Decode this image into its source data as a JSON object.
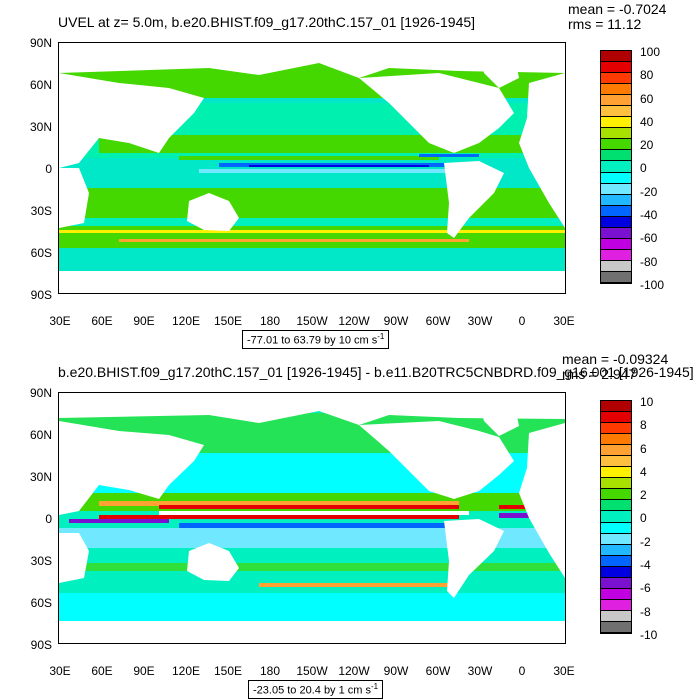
{
  "panels": [
    {
      "title": "UVEL at z=   5.0m, b.e20.BHIST.f09_g17.20thC.157_01 [1926-1945]",
      "mean": "mean = -0.7024",
      "rms": "rms = 11.12",
      "range": "-77.01 to 63.79 by 10 cm s",
      "range_exp": "-1",
      "colorbar_labels": [
        "100",
        "80",
        "60",
        "40",
        "20",
        "0",
        "-20",
        "-40",
        "-60",
        "-80",
        "-100"
      ]
    },
    {
      "title": "b.e20.BHIST.f09_g17.20thC.157_01 [1926-1945] - b.e11.B20TRC5CNBDRD.f09_g16.001 [1926-1945]",
      "mean": "mean = -0.09324",
      "rms": "rms = 2.947",
      "range": "-23.05 to 20.4 by 1 cm s",
      "range_exp": "-1",
      "colorbar_labels": [
        "10",
        "8",
        "6",
        "4",
        "2",
        "0",
        "-2",
        "-4",
        "-6",
        "-8",
        "-10"
      ]
    }
  ],
  "y_labels": [
    "90N",
    "60N",
    "30N",
    "0",
    "30S",
    "60S",
    "90S"
  ],
  "x_labels": [
    "30E",
    "60E",
    "90E",
    "120E",
    "150E",
    "180",
    "150W",
    "120W",
    "90W",
    "60W",
    "30W",
    "0",
    "30E"
  ],
  "colorbar_colors": [
    "#b00000",
    "#e40000",
    "#ff3a00",
    "#ff7a00",
    "#ffa133",
    "#ffc040",
    "#ffef00",
    "#a8e000",
    "#44d800",
    "#00e070",
    "#00f0c0",
    "#00ffff",
    "#70e8ff",
    "#22b8ff",
    "#0066ff",
    "#0000e0",
    "#7a10d0",
    "#c000e0",
    "#e020e0",
    "#c8c8c8",
    "#707070"
  ]
}
